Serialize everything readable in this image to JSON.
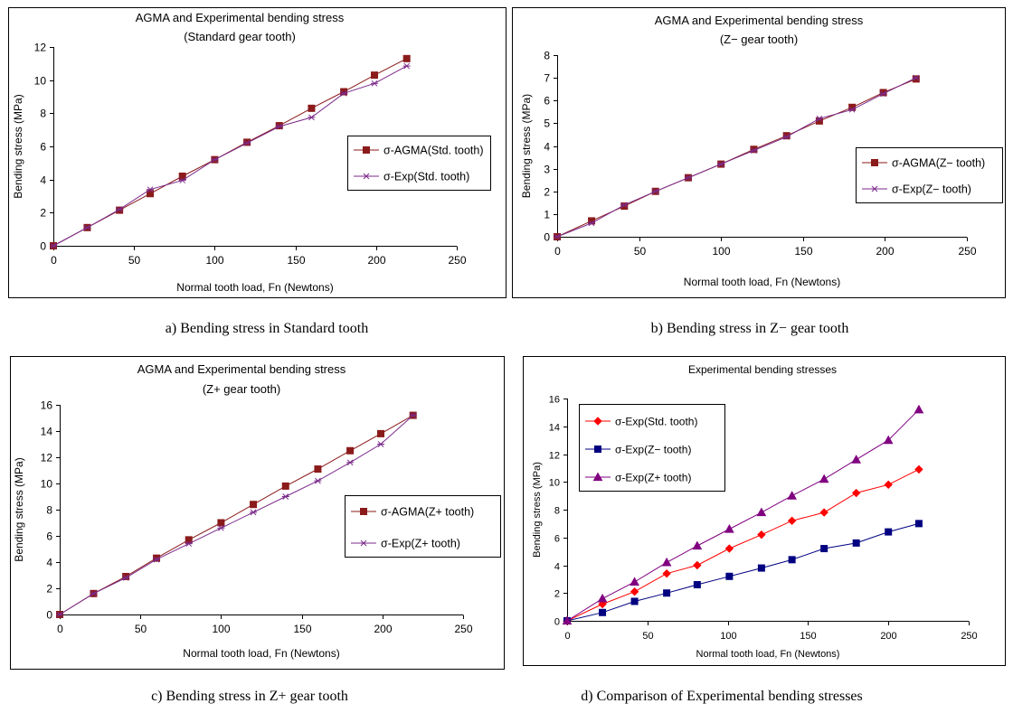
{
  "chart_data": [
    {
      "type": "line",
      "title": "AGMA and Experimental bending stress",
      "subtitle": "(Standard gear tooth)",
      "xlabel": "Normal tooth load, Fn (Newtons)",
      "ylabel": "Bending stress (MPa)",
      "xlim": [
        0,
        250
      ],
      "ylim": [
        0,
        12
      ],
      "xticks": [
        "0",
        "50",
        "100",
        "150",
        "200",
        "250"
      ],
      "yticks": [
        "0",
        "2",
        "4",
        "6",
        "8",
        "10",
        "12"
      ],
      "legend_position": "right",
      "caption": "a) Bending stress in Standard tooth",
      "series": [
        {
          "name": "σ-AGMA(Std. tooth)",
          "marker": "square",
          "color": "#8b1a1a",
          "x": [
            0,
            21,
            41,
            60,
            80,
            100,
            120,
            140,
            160,
            180,
            199,
            219
          ],
          "y": [
            0,
            1.1,
            2.15,
            3.15,
            4.2,
            5.2,
            6.25,
            7.25,
            8.3,
            9.3,
            10.3,
            11.3
          ]
        },
        {
          "name": "σ-Exp(Std. tooth)",
          "marker": "star",
          "color": "#7b2a8b",
          "x": [
            0,
            21,
            41,
            60,
            80,
            100,
            120,
            140,
            160,
            180,
            199,
            219
          ],
          "y": [
            0,
            1.1,
            2.2,
            3.4,
            3.95,
            5.2,
            6.2,
            7.2,
            7.75,
            9.2,
            9.8,
            10.85
          ]
        }
      ]
    },
    {
      "type": "line",
      "title": "AGMA and Experimental bending stress",
      "subtitle": "(Z− gear tooth)",
      "xlabel": "Normal tooth load, Fn (Newtons)",
      "ylabel": "Bending stress (MPa)",
      "xlim": [
        0,
        250
      ],
      "ylim": [
        0,
        8
      ],
      "xticks": [
        "0",
        "50",
        "100",
        "150",
        "200",
        "250"
      ],
      "yticks": [
        "0",
        "1",
        "2",
        "3",
        "4",
        "5",
        "6",
        "7",
        "8"
      ],
      "legend_position": "right",
      "caption": "b) Bending stress in Z− gear tooth",
      "series": [
        {
          "name": "σ-AGMA(Z− tooth)",
          "marker": "square",
          "color": "#8b1a1a",
          "x": [
            0,
            21,
            41,
            60,
            80,
            100,
            120,
            140,
            160,
            180,
            199,
            219
          ],
          "y": [
            0,
            0.7,
            1.35,
            2.0,
            2.6,
            3.2,
            3.85,
            4.45,
            5.1,
            5.7,
            6.35,
            6.95
          ]
        },
        {
          "name": "σ-Exp(Z− tooth)",
          "marker": "star",
          "color": "#7b2a8b",
          "x": [
            0,
            21,
            41,
            60,
            80,
            100,
            120,
            140,
            160,
            180,
            199,
            219
          ],
          "y": [
            0,
            0.6,
            1.4,
            2.0,
            2.6,
            3.2,
            3.8,
            4.4,
            5.2,
            5.6,
            6.3,
            7.0
          ]
        }
      ]
    },
    {
      "type": "line",
      "title": "AGMA and Experimental bending stress",
      "subtitle": "(Z+ gear tooth)",
      "xlabel": "Normal tooth load, Fn (Newtons)",
      "ylabel": "Bending stress (MPa)",
      "xlim": [
        0,
        250
      ],
      "ylim": [
        0,
        16
      ],
      "xticks": [
        "0",
        "50",
        "100",
        "150",
        "200",
        "250"
      ],
      "yticks": [
        "0",
        "2",
        "4",
        "6",
        "8",
        "10",
        "12",
        "14",
        "16"
      ],
      "legend_position": "right",
      "caption": "c) Bending stress in Z+ gear tooth",
      "series": [
        {
          "name": "σ-AGMA(Z+ tooth)",
          "marker": "square",
          "color": "#8b1a1a",
          "x": [
            0,
            21,
            41,
            60,
            80,
            100,
            120,
            140,
            160,
            180,
            199,
            219
          ],
          "y": [
            0,
            1.6,
            2.9,
            4.3,
            5.7,
            7.0,
            8.4,
            9.8,
            11.1,
            12.5,
            13.8,
            15.2
          ]
        },
        {
          "name": "σ-Exp(Z+ tooth)",
          "marker": "star",
          "color": "#7b2a8b",
          "x": [
            0,
            21,
            41,
            60,
            80,
            100,
            120,
            140,
            160,
            180,
            199,
            219
          ],
          "y": [
            0,
            1.6,
            2.8,
            4.2,
            5.4,
            6.6,
            7.8,
            9.0,
            10.2,
            11.6,
            13.0,
            15.2
          ]
        }
      ]
    },
    {
      "type": "line",
      "title": "Experimental bending stresses",
      "subtitle": "",
      "xlabel": "Normal tooth load, Fn (Newtons)",
      "ylabel": "Bending stress (MPa)",
      "xlim": [
        0,
        250
      ],
      "ylim": [
        0,
        16
      ],
      "xticks": [
        "0",
        "50",
        "100",
        "150",
        "200",
        "250"
      ],
      "yticks": [
        "0",
        "2",
        "4",
        "6",
        "8",
        "10",
        "12",
        "14",
        "16"
      ],
      "legend_position": "top-left",
      "caption": "d) Comparison of Experimental bending stresses",
      "series": [
        {
          "name": "σ-Exp(Std. tooth)",
          "marker": "diamond",
          "color": "#ff0000",
          "x": [
            0,
            22,
            42,
            62,
            81,
            101,
            121,
            140,
            160,
            180,
            200,
            219
          ],
          "y": [
            0,
            1.2,
            2.1,
            3.4,
            4.0,
            5.2,
            6.2,
            7.2,
            7.8,
            9.2,
            9.8,
            10.9
          ]
        },
        {
          "name": "σ-Exp(Z− tooth)",
          "marker": "square",
          "color": "#000080",
          "x": [
            0,
            22,
            42,
            62,
            81,
            101,
            121,
            140,
            160,
            180,
            200,
            219
          ],
          "y": [
            0,
            0.6,
            1.4,
            2.0,
            2.6,
            3.2,
            3.8,
            4.4,
            5.2,
            5.6,
            6.4,
            7.0
          ]
        },
        {
          "name": "σ-Exp(Z+ tooth)",
          "marker": "triangle",
          "color": "#800080",
          "x": [
            0,
            22,
            42,
            62,
            81,
            101,
            121,
            140,
            160,
            180,
            200,
            219
          ],
          "y": [
            0,
            1.6,
            2.8,
            4.2,
            5.4,
            6.6,
            7.8,
            9.0,
            10.2,
            11.6,
            13.0,
            15.2
          ]
        }
      ]
    }
  ]
}
